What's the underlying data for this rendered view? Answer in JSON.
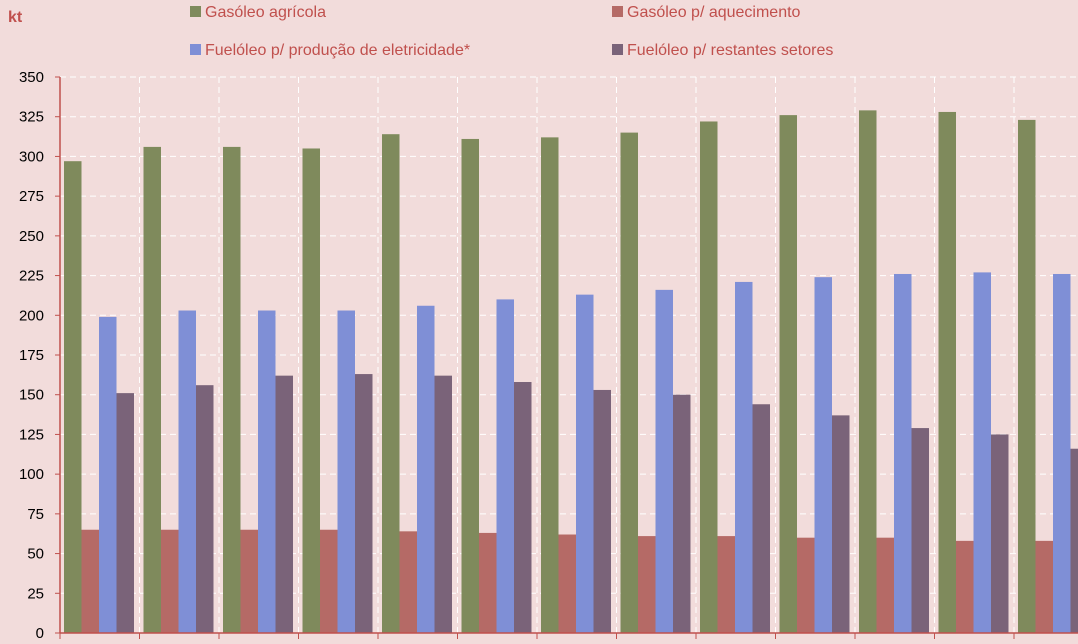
{
  "chart_data": {
    "type": "bar",
    "ylabel": "kt",
    "ylim": [
      0,
      350
    ],
    "yticks": [
      0,
      25,
      50,
      75,
      100,
      125,
      150,
      175,
      200,
      225,
      250,
      275,
      300,
      325,
      350
    ],
    "grid": true,
    "legend_position": "top",
    "colors": {
      "background": "#f2dcdb",
      "axis": "#c0504d",
      "grid": "#ffffff"
    },
    "series": [
      {
        "name": "Gasóleo agrícola",
        "color": "#7f8a5c",
        "values": [
          297,
          306,
          306,
          305,
          314,
          311,
          312,
          315,
          322,
          326,
          329,
          328,
          323
        ]
      },
      {
        "name": "Gasóleo p/ aquecimento",
        "color": "#b56a66",
        "values": [
          65,
          65,
          65,
          65,
          64,
          63,
          62,
          61,
          61,
          60,
          60,
          58,
          58
        ]
      },
      {
        "name": "Fuelóleo p/ produção de eletricidade*",
        "color": "#7f8fd6",
        "values": [
          199,
          203,
          203,
          203,
          206,
          210,
          213,
          216,
          221,
          224,
          226,
          227,
          226
        ]
      },
      {
        "name": "Fuelóleo p/ restantes setores",
        "color": "#7a6379",
        "values": [
          151,
          156,
          162,
          163,
          162,
          158,
          153,
          150,
          144,
          137,
          129,
          125,
          116
        ]
      }
    ]
  }
}
